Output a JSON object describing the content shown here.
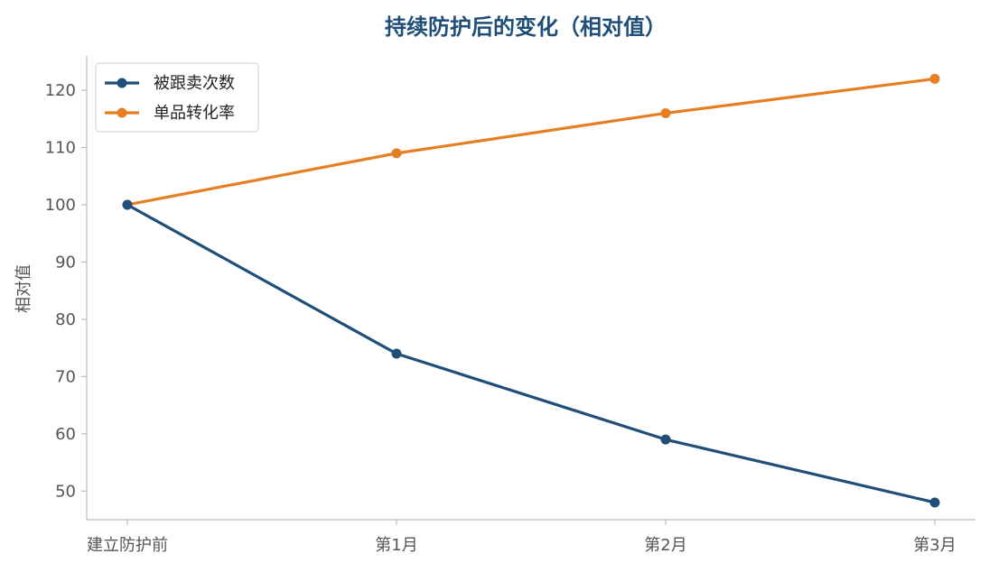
{
  "chart_data": {
    "type": "line",
    "title": "持续防护后的变化（相对值）",
    "xlabel": "",
    "ylabel": "相对值",
    "categories": [
      "建立防护前",
      "第1月",
      "第2月",
      "第3月"
    ],
    "ylim": [
      45,
      126
    ],
    "yticks": [
      50,
      60,
      70,
      80,
      90,
      100,
      110,
      120
    ],
    "grid": false,
    "legend_position": "top-left",
    "series": [
      {
        "name": "被跟卖次数",
        "color": "#1f4e79",
        "values": [
          100,
          74,
          59,
          48
        ]
      },
      {
        "name": "单品转化率",
        "color": "#e67e22",
        "values": [
          100,
          109,
          116,
          122
        ]
      }
    ]
  }
}
